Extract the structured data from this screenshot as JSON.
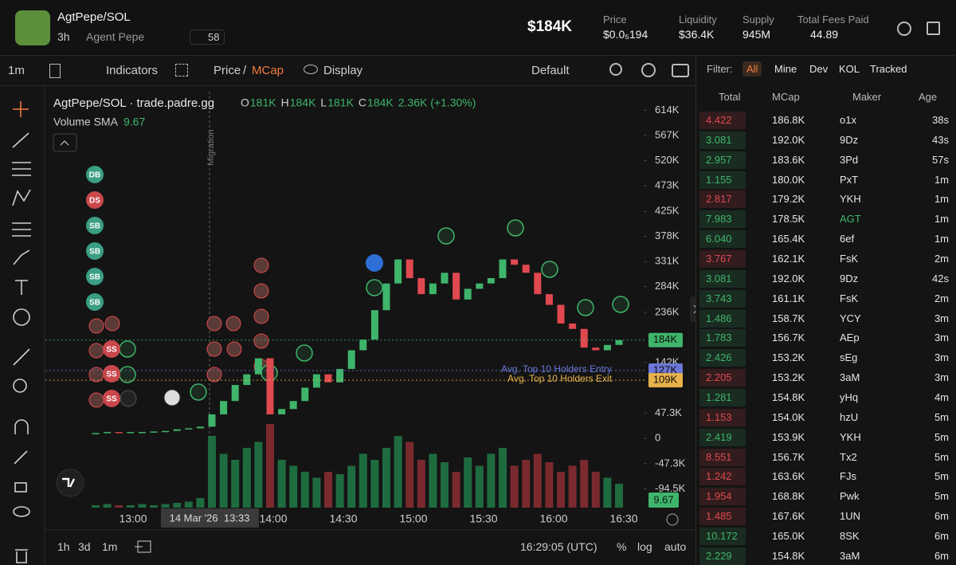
{
  "header": {
    "token": "AgtPepe/SOL",
    "age": "3h",
    "name": "Agent Pepe",
    "views": "58",
    "market_cap": "$184K",
    "stats": [
      {
        "label": "Price",
        "value": "$0.0₅194"
      },
      {
        "label": "Liquidity",
        "value": "$36.4K"
      },
      {
        "label": "Supply",
        "value": "945M"
      },
      {
        "label": "Total Fees Paid",
        "value": "44.89"
      }
    ]
  },
  "toolbar": {
    "interval": "1m",
    "indicators": "Indicators",
    "price": "Price",
    "separator": "/",
    "mcap": "MCap",
    "display": "Display",
    "layout": "Default"
  },
  "chart_data": {
    "type": "candlestick",
    "title": "AgtPepe/SOL · trade.padre.gg",
    "ohlc": [
      {
        "key": "O",
        "value": "181K"
      },
      {
        "key": "H",
        "value": "184K"
      },
      {
        "key": "L",
        "value": "181K"
      },
      {
        "key": "C",
        "value": "184K"
      }
    ],
    "change": "2.36K (+1.30%)",
    "volume_label": "Volume SMA",
    "volume_sma": "9.67",
    "migration": "Migration",
    "up_color": "#3fb56b",
    "down_color": "#e0494f",
    "volume_up_color": "#1f6b40",
    "volume_down_color": "#7a2a2e",
    "values": [
      10,
      12,
      11,
      12,
      12,
      13,
      14,
      17,
      19,
      22,
      45,
      70,
      100,
      120,
      150,
      45,
      55,
      70,
      95,
      120,
      105,
      130,
      165,
      185,
      240,
      290,
      335,
      300,
      270,
      290,
      310,
      260,
      280,
      290,
      300,
      335,
      325,
      310,
      270,
      250,
      215,
      205,
      170,
      165,
      175,
      184
    ],
    "volumes": [
      2,
      3,
      2,
      2,
      3,
      2,
      3,
      4,
      5,
      8,
      60,
      45,
      40,
      50,
      55,
      70,
      40,
      35,
      30,
      25,
      30,
      28,
      35,
      45,
      40,
      50,
      60,
      55,
      40,
      45,
      38,
      30,
      42,
      35,
      45,
      50,
      35,
      40,
      45,
      38,
      30,
      35,
      40,
      30,
      25,
      20
    ],
    "ylim": [
      -134,
      649
    ],
    "yticks": [
      {
        "value": 614,
        "label": "614K"
      },
      {
        "value": 567,
        "label": "567K"
      },
      {
        "value": 520,
        "label": "520K"
      },
      {
        "value": 473,
        "label": "473K"
      },
      {
        "value": 425,
        "label": "425K"
      },
      {
        "value": 378,
        "label": "378K"
      },
      {
        "value": 331,
        "label": "331K"
      },
      {
        "value": 284,
        "label": "284K"
      },
      {
        "value": 236,
        "label": "236K"
      },
      {
        "value": 142,
        "label": "142K"
      },
      {
        "value": 47.3,
        "label": "47.3K"
      },
      0,
      {
        "value": -47.3,
        "label": "-47.3K"
      },
      {
        "value": -94.5,
        "label": "-94.5K"
      }
    ],
    "price_lines": [
      {
        "value": 184,
        "label": "184K",
        "color": "#3fb56b"
      },
      {
        "value": 127,
        "label": "127K",
        "name": "Avg. Top 10 Holders Entry",
        "color": "#6b78d8"
      },
      {
        "value": 109,
        "label": "109K",
        "name": "Avg. Top 10 Holders Exit",
        "color": "#e8b24a"
      }
    ],
    "xticks": [
      "13:00",
      "14:00",
      "14:30",
      "15:00",
      "15:30",
      "16:00",
      "16:30"
    ],
    "crosshair_label": "14 Mar '26  13:33",
    "markers": [
      "DB",
      "DS",
      "SB",
      "SB",
      "SB",
      "SB",
      "SS",
      "SS",
      "SS"
    ]
  },
  "bottom_bar": {
    "ranges": [
      "1h",
      "3d",
      "1m"
    ],
    "clock": "16:29:05 (UTC)",
    "options": [
      "%",
      "log",
      "auto"
    ]
  },
  "trades": {
    "filter_label": "Filter:",
    "filters": [
      "All",
      "Mine",
      "Dev",
      "KOL",
      "Tracked"
    ],
    "columns": [
      "Total",
      "MCap",
      "Maker",
      "Age"
    ],
    "rows": [
      {
        "total": "4.422",
        "mcap": "186.8K",
        "maker": "o1x",
        "age": "38s",
        "color": "#e0494f"
      },
      {
        "total": "3.081",
        "mcap": "192.0K",
        "maker": "9Dz",
        "age": "43s",
        "color": "#3fb56b"
      },
      {
        "total": "2.957",
        "mcap": "183.6K",
        "maker": "3Pd",
        "age": "57s",
        "color": "#3fb56b"
      },
      {
        "total": "1.155",
        "mcap": "180.0K",
        "maker": "PxT",
        "age": "1m",
        "color": "#3fb56b"
      },
      {
        "total": "2.817",
        "mcap": "179.2K",
        "maker": "YKH",
        "age": "1m",
        "color": "#e0494f"
      },
      {
        "total": "7.983",
        "mcap": "178.5K",
        "maker": "AGT",
        "age": "1m",
        "color": "#3fb56b"
      },
      {
        "total": "6.040",
        "mcap": "165.4K",
        "maker": "6ef",
        "age": "1m",
        "color": "#3fb56b"
      },
      {
        "total": "3.767",
        "mcap": "162.1K",
        "maker": "FsK",
        "age": "2m",
        "color": "#e0494f"
      },
      {
        "total": "3.081",
        "mcap": "192.0K",
        "maker": "9Dz",
        "age": "42s",
        "color": "#3fb56b"
      },
      {
        "total": "3.743",
        "mcap": "161.1K",
        "maker": "FsK",
        "age": "2m",
        "color": "#3fb56b"
      },
      {
        "total": "1.486",
        "mcap": "158.7K",
        "maker": "YCY",
        "age": "3m",
        "color": "#3fb56b"
      },
      {
        "total": "1.783",
        "mcap": "156.7K",
        "maker": "AEp",
        "age": "3m",
        "color": "#3fb56b"
      },
      {
        "total": "2.426",
        "mcap": "153.2K",
        "maker": "sEg",
        "age": "3m",
        "color": "#3fb56b"
      },
      {
        "total": "2.205",
        "mcap": "153.2K",
        "maker": "3aM",
        "age": "3m",
        "color": "#e0494f"
      },
      {
        "total": "1.281",
        "mcap": "154.8K",
        "maker": "yHq",
        "age": "4m",
        "color": "#3fb56b"
      },
      {
        "total": "1.153",
        "mcap": "154.0K",
        "maker": "hzU",
        "age": "5m",
        "color": "#e0494f"
      },
      {
        "total": "2.419",
        "mcap": "153.9K",
        "maker": "YKH",
        "age": "5m",
        "color": "#3fb56b"
      },
      {
        "total": "8.551",
        "mcap": "156.7K",
        "maker": "Tx2",
        "age": "5m",
        "color": "#e0494f"
      },
      {
        "total": "1.242",
        "mcap": "163.6K",
        "maker": "FJs",
        "age": "5m",
        "color": "#e0494f"
      },
      {
        "total": "1.954",
        "mcap": "168.8K",
        "maker": "Pwk",
        "age": "5m",
        "color": "#e0494f"
      },
      {
        "total": "1.485",
        "mcap": "167.6K",
        "maker": "1UN",
        "age": "6m",
        "color": "#e0494f"
      },
      {
        "total": "10.172",
        "mcap": "165.0K",
        "maker": "8SK",
        "age": "6m",
        "color": "#3fb56b"
      },
      {
        "total": "2.229",
        "mcap": "154.8K",
        "maker": "3aM",
        "age": "6m",
        "color": "#3fb56b"
      }
    ]
  }
}
